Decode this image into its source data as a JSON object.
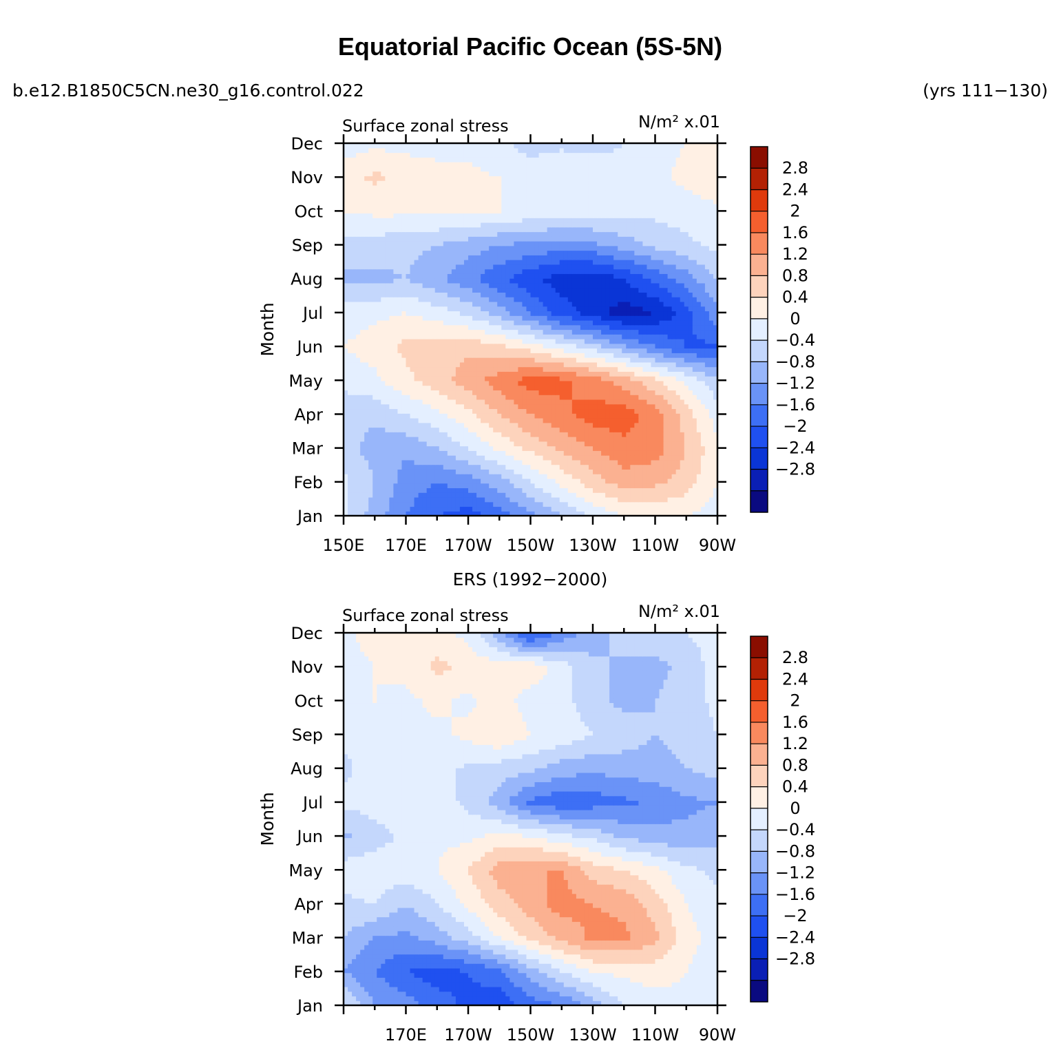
{
  "figure": {
    "title": "Equatorial Pacific Ocean (5S-5N)",
    "case_label": "b.e12.B1850C5CN.ne30_g16.control.022",
    "years_label": "(yrs 111−130)"
  },
  "colors": {
    "palette": [
      "#0a0a80",
      "#0a1fb5",
      "#0a35d6",
      "#1f50f0",
      "#3d6ff5",
      "#6a93f7",
      "#98b6fa",
      "#c4d7fc",
      "#e4efff",
      "#fff0e4",
      "#fdd3bc",
      "#fbb191",
      "#f9895e",
      "#f55f2e",
      "#df3a0c",
      "#b32104",
      "#8a0e00"
    ],
    "levels": [
      -2.8,
      -2.4,
      -2,
      -1.6,
      -1.2,
      -0.8,
      -0.4,
      0,
      0.4,
      0.8,
      1.2,
      1.6,
      2,
      2.4,
      2.8
    ]
  },
  "chart_data": [
    {
      "type": "heatmap",
      "panel_title": "",
      "subtitle_left": "Surface zonal stress",
      "units_text": "N/m² x.01",
      "ylabel": "Month",
      "x_ticks": [
        "150E",
        "170E",
        "170W",
        "150W",
        "130W",
        "110W",
        "90W"
      ],
      "x_tick_values": [
        150,
        170,
        190,
        210,
        230,
        250,
        270
      ],
      "xlim": [
        150,
        270
      ],
      "y_ticks": [
        "Jan",
        "Feb",
        "Mar",
        "Apr",
        "May",
        "Jun",
        "Jul",
        "Aug",
        "Sep",
        "Oct",
        "Nov",
        "Dec"
      ],
      "colorbar_labels": [
        "2.8",
        "2.4",
        "2",
        "1.6",
        "1.2",
        "0.8",
        "0.4",
        "0",
        "−0.4",
        "−0.8",
        "−1.2",
        "−1.6",
        "−2",
        "−2.4",
        "−2.8"
      ],
      "x": [
        150,
        160,
        170,
        180,
        190,
        200,
        210,
        220,
        230,
        240,
        250,
        260,
        270
      ],
      "z": [
        [
          0.1,
          -0.6,
          -1.2,
          -1.6,
          -1.8,
          -1.4,
          -0.9,
          -0.4,
          0.1,
          0.4,
          0.5,
          0.4,
          0.2
        ],
        [
          0.1,
          -0.4,
          -1.0,
          -1.2,
          -1.0,
          -0.6,
          0.0,
          0.5,
          1.0,
          1.4,
          1.3,
          1.0,
          0.4
        ],
        [
          -0.2,
          -0.6,
          -0.7,
          -0.4,
          0.0,
          0.5,
          0.9,
          1.3,
          1.6,
          1.9,
          1.8,
          1.2,
          0.5
        ],
        [
          -0.2,
          -0.3,
          0.0,
          0.3,
          0.7,
          1.2,
          1.6,
          1.9,
          2.2,
          2.2,
          1.8,
          1.0,
          0.2
        ],
        [
          0.1,
          0.3,
          0.7,
          1.0,
          1.4,
          1.8,
          2.2,
          2.1,
          1.8,
          1.4,
          0.9,
          0.3,
          -0.3
        ],
        [
          0.4,
          0.6,
          0.9,
          1.0,
          1.1,
          0.9,
          0.6,
          0.2,
          -0.2,
          -0.7,
          -1.2,
          -1.6,
          -1.7
        ],
        [
          0.2,
          0.3,
          0.4,
          0.2,
          -0.1,
          -0.6,
          -1.2,
          -1.8,
          -2.2,
          -2.6,
          -2.4,
          -1.8,
          -0.9
        ],
        [
          -0.5,
          -0.5,
          -0.4,
          -0.7,
          -1.1,
          -1.5,
          -1.9,
          -2.2,
          -2.3,
          -2.0,
          -1.5,
          -1.0,
          -0.4
        ],
        [
          -0.1,
          -0.2,
          -0.3,
          -0.4,
          -0.6,
          -0.8,
          -0.9,
          -1.0,
          -0.9,
          -0.6,
          -0.3,
          -0.1,
          0.1
        ],
        [
          0.4,
          0.5,
          0.5,
          0.5,
          0.5,
          0.4,
          0.3,
          0.2,
          0.2,
          0.1,
          0.1,
          0.2,
          0.3
        ],
        [
          0.6,
          0.9,
          0.6,
          0.5,
          0.5,
          0.4,
          0.3,
          0.4,
          0.2,
          0.1,
          0.3,
          0.5,
          0.7
        ],
        [
          0.2,
          0.3,
          0.3,
          0.3,
          0.3,
          0.1,
          -0.2,
          -0.1,
          -0.1,
          0.0,
          0.3,
          0.4,
          0.4
        ]
      ]
    },
    {
      "type": "heatmap",
      "panel_title": "ERS (1992−2000)",
      "subtitle_left": "Surface zonal stress",
      "units_text": "N/m² x.01",
      "ylabel": "Month",
      "x_ticks": [
        "170E",
        "170W",
        "150W",
        "130W",
        "110W",
        "90W"
      ],
      "x_tick_values": [
        170,
        190,
        210,
        230,
        250,
        270
      ],
      "xlim": [
        150,
        270
      ],
      "y_ticks": [
        "Jan",
        "Feb",
        "Mar",
        "Apr",
        "May",
        "Jun",
        "Jul",
        "Aug",
        "Sep",
        "Oct",
        "Nov",
        "Dec"
      ],
      "colorbar_labels": [
        "2.8",
        "2.4",
        "2",
        "1.6",
        "1.2",
        "0.8",
        "0.4",
        "0",
        "−0.4",
        "−0.8",
        "−1.2",
        "−1.6",
        "−2",
        "−2.4",
        "−2.8"
      ],
      "x": [
        150,
        160,
        170,
        180,
        190,
        200,
        210,
        220,
        230,
        240,
        250,
        260,
        270
      ],
      "z": [
        [
          0.1,
          -0.8,
          -1.0,
          -1.4,
          -1.7,
          -1.9,
          -1.4,
          -1.2,
          -0.6,
          0.0,
          0.2,
          0.3,
          0.1
        ],
        [
          -0.8,
          -1.2,
          -1.6,
          -1.8,
          -1.6,
          -1.3,
          -0.6,
          0.0,
          0.4,
          0.5,
          0.6,
          0.4,
          0.1
        ],
        [
          -0.4,
          -0.8,
          -0.9,
          -0.6,
          -0.2,
          0.4,
          0.9,
          1.3,
          1.7,
          1.7,
          1.3,
          0.6,
          0.2
        ],
        [
          -0.1,
          0.0,
          -0.4,
          0.0,
          0.5,
          1.0,
          1.4,
          1.8,
          1.6,
          1.5,
          1.0,
          0.4,
          0.1
        ],
        [
          0.2,
          0.3,
          0.2,
          0.4,
          0.8,
          1.4,
          1.6,
          1.6,
          1.0,
          0.8,
          0.5,
          0.1,
          -0.1
        ],
        [
          -0.5,
          -0.2,
          0.1,
          0.3,
          0.3,
          0.5,
          0.4,
          0.1,
          -0.1,
          -0.5,
          -0.6,
          -0.7,
          -0.5
        ],
        [
          0.1,
          0.2,
          0.3,
          0.2,
          -0.1,
          -0.6,
          -1.3,
          -1.5,
          -1.4,
          -1.3,
          -1.1,
          -0.9,
          -0.8
        ],
        [
          -0.1,
          0.2,
          0.4,
          0.2,
          -0.1,
          -0.2,
          -0.3,
          -0.6,
          -0.7,
          -0.6,
          -0.6,
          -0.4,
          -0.2
        ],
        [
          0.1,
          0.2,
          0.4,
          0.3,
          0.5,
          0.8,
          0.4,
          0.3,
          0.0,
          -0.2,
          -0.4,
          -0.2,
          0.0
        ],
        [
          0.2,
          0.4,
          0.3,
          0.5,
          0.3,
          0.6,
          0.2,
          0.2,
          -0.3,
          -0.5,
          -0.4,
          -0.2,
          0.1
        ],
        [
          0.2,
          0.4,
          0.5,
          0.9,
          0.7,
          0.6,
          0.7,
          0.2,
          -0.3,
          -0.5,
          -0.5,
          -0.3,
          0.2
        ],
        [
          0.3,
          0.6,
          0.5,
          0.5,
          0.3,
          -0.7,
          -1.8,
          -1.1,
          -0.6,
          -0.2,
          -0.2,
          0.0,
          0.2
        ]
      ]
    }
  ]
}
